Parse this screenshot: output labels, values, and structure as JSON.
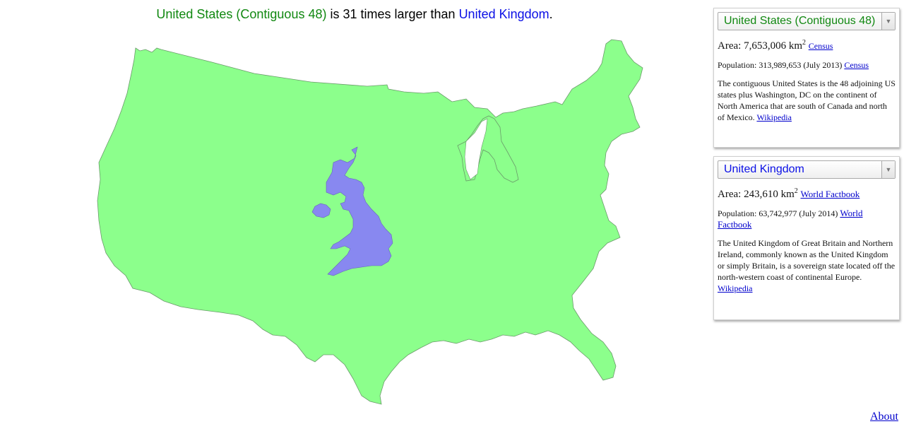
{
  "headline": {
    "country_a": "United States (Contiguous 48)",
    "middle": " is 31 times larger than ",
    "country_b": "United Kingdom",
    "end": "."
  },
  "colors": {
    "country_a_text": "#118811",
    "country_b_text": "#0b10e6",
    "country_a_fill": "#8cff8c",
    "country_b_fill": "#8888f0"
  },
  "panel_a": {
    "selected": "United States (Contiguous 48)",
    "area_label": "Area: ",
    "area_value": "7,653,006 km",
    "area_sup": "2",
    "area_source": "Census",
    "population_text": "Population: 313,989,653 (July 2013) ",
    "population_source": "Census",
    "description": "The contiguous United States is the 48 adjoining US states plus Washington, DC on the continent of North America that are south of Canada and north of Mexico. ",
    "description_source": "Wikipedia"
  },
  "panel_b": {
    "selected": "United Kingdom",
    "area_label": "Area: ",
    "area_value": "243,610 km",
    "area_sup": "2",
    "area_source": "World Factbook",
    "population_text": "Population: 63,742,977 (July 2014) ",
    "population_source": "World Factbook",
    "description": "The United Kingdom of Great Britain and Northern Ireland, commonly known as the United Kingdom or simply Britain, is a sovereign state located off the north-western coast of continental Europe. ",
    "description_source": "Wikipedia"
  },
  "footer": {
    "about": "About"
  }
}
